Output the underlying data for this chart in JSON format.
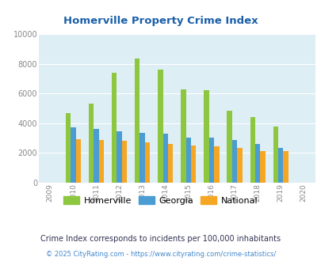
{
  "title": "Homerville Property Crime Index",
  "years": [
    2009,
    2010,
    2011,
    2012,
    2013,
    2014,
    2015,
    2016,
    2017,
    2018,
    2019,
    2020
  ],
  "homerville": [
    null,
    4700,
    5300,
    7400,
    8350,
    7600,
    6250,
    6200,
    4850,
    4400,
    3800,
    null
  ],
  "georgia": [
    null,
    3700,
    3600,
    3450,
    3350,
    3300,
    3050,
    3050,
    2850,
    2600,
    2350,
    null
  ],
  "national": [
    null,
    2950,
    2850,
    2800,
    2700,
    2600,
    2500,
    2450,
    2350,
    2150,
    2100,
    null
  ],
  "homerville_color": "#8dc63f",
  "georgia_color": "#4b9cd3",
  "national_color": "#f5a623",
  "bg_color": "#deeef5",
  "ylim": [
    0,
    10000
  ],
  "yticks": [
    0,
    2000,
    4000,
    6000,
    8000,
    10000
  ],
  "footnote1": "Crime Index corresponds to incidents per 100,000 inhabitants",
  "footnote2": "© 2025 CityRating.com - https://www.cityrating.com/crime-statistics/",
  "title_color": "#1a5fa8",
  "tick_color": "#888888",
  "footnote1_color": "#333355",
  "footnote2_color": "#4488cc"
}
